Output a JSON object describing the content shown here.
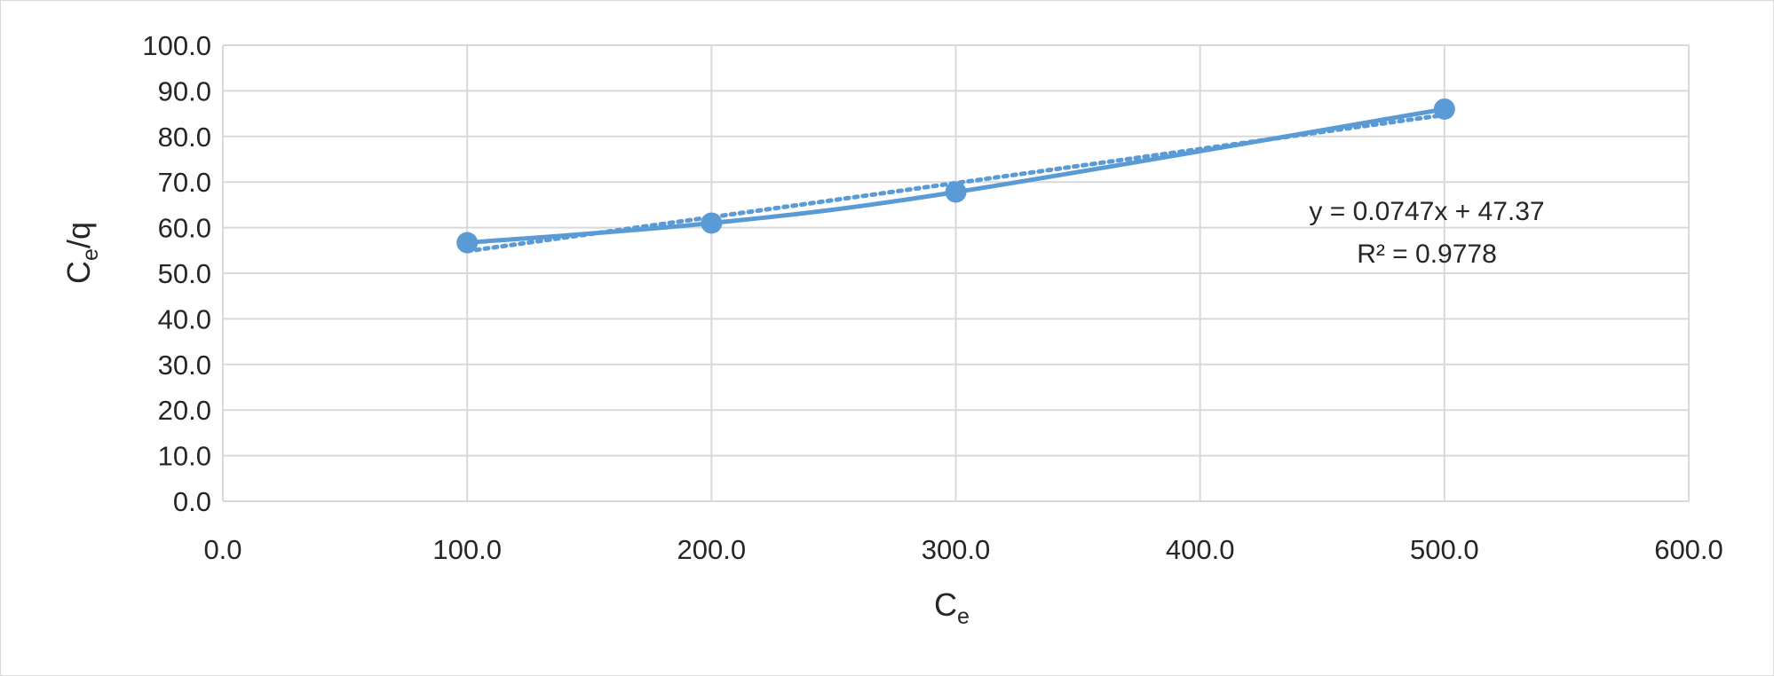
{
  "chart_data": {
    "type": "scatter",
    "title": "",
    "xlabel": {
      "main": "C",
      "sub": "e",
      "rest": ""
    },
    "ylabel": {
      "main": "C",
      "sub": "e",
      "rest": "/q"
    },
    "xlim": [
      0,
      600
    ],
    "ylim": [
      0,
      100
    ],
    "x_ticks": [
      0,
      100,
      200,
      300,
      400,
      500,
      600
    ],
    "y_ticks": [
      0,
      10,
      20,
      30,
      40,
      50,
      60,
      70,
      80,
      90,
      100
    ],
    "x_tick_labels": [
      "0.0",
      "100.0",
      "200.0",
      "300.0",
      "400.0",
      "500.0",
      "600.0"
    ],
    "y_tick_labels": [
      "0.0",
      "10.0",
      "20.0",
      "30.0",
      "40.0",
      "50.0",
      "60.0",
      "70.0",
      "80.0",
      "90.0",
      "100.0"
    ],
    "grid": true,
    "legend": "none",
    "series": [
      {
        "x": [
          100,
          200,
          300,
          500
        ],
        "y": [
          56.7,
          61.0,
          67.8,
          86.0
        ],
        "color": "#5b9bd5",
        "style": "smooth-line-with-markers"
      }
    ],
    "trendline": {
      "type": "linear",
      "slope": 0.0747,
      "intercept": 47.37,
      "x_range": [
        100,
        500
      ],
      "color": "#5b9bd5",
      "style": "dotted",
      "equation_label": "y = 0.0747x + 47.37",
      "r2_label": "R² = 0.9778"
    }
  }
}
